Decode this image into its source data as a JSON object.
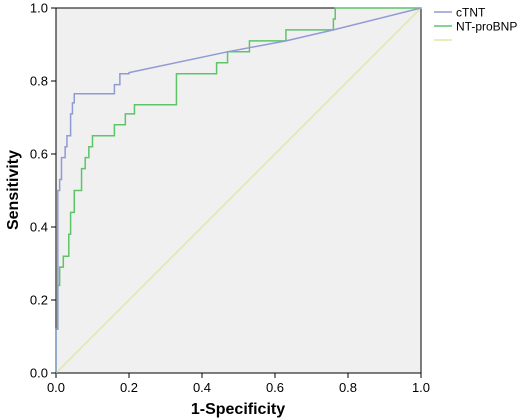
{
  "chart_data": {
    "type": "line",
    "title": "",
    "xlabel": "1-Specificity",
    "ylabel": "Sensitivity",
    "xlim": [
      0.0,
      1.0
    ],
    "ylim": [
      0.0,
      1.0
    ],
    "x_ticks": [
      "0.0",
      "0.2",
      "0.4",
      "0.6",
      "0.8",
      "1.0"
    ],
    "y_ticks": [
      "0.0",
      "0.2",
      "0.4",
      "0.6",
      "0.8",
      "1.0"
    ],
    "grid": false,
    "legend_position": "right",
    "background_color": "#f0f0f0",
    "series": [
      {
        "name": "cTNT",
        "color": "#8f9bd3",
        "points": [
          [
            0.0,
            0.0
          ],
          [
            0.0,
            0.12
          ],
          [
            0.005,
            0.12
          ],
          [
            0.005,
            0.5
          ],
          [
            0.01,
            0.5
          ],
          [
            0.01,
            0.53
          ],
          [
            0.015,
            0.53
          ],
          [
            0.015,
            0.59
          ],
          [
            0.025,
            0.59
          ],
          [
            0.025,
            0.62
          ],
          [
            0.03,
            0.62
          ],
          [
            0.03,
            0.65
          ],
          [
            0.04,
            0.65
          ],
          [
            0.04,
            0.71
          ],
          [
            0.045,
            0.71
          ],
          [
            0.045,
            0.74
          ],
          [
            0.05,
            0.74
          ],
          [
            0.05,
            0.765
          ],
          [
            0.16,
            0.765
          ],
          [
            0.16,
            0.79
          ],
          [
            0.175,
            0.79
          ],
          [
            0.175,
            0.82
          ],
          [
            0.2,
            0.82
          ],
          [
            0.2,
            0.823
          ],
          [
            0.47,
            0.88
          ],
          [
            0.63,
            0.91
          ],
          [
            0.76,
            0.94
          ],
          [
            1.0,
            1.0
          ]
        ]
      },
      {
        "name": "NT-proBNP",
        "color": "#5ec46a",
        "points": [
          [
            0.0,
            0.0
          ],
          [
            0.0,
            0.12
          ],
          [
            0.005,
            0.12
          ],
          [
            0.005,
            0.24
          ],
          [
            0.01,
            0.24
          ],
          [
            0.01,
            0.29
          ],
          [
            0.02,
            0.29
          ],
          [
            0.02,
            0.32
          ],
          [
            0.035,
            0.32
          ],
          [
            0.035,
            0.38
          ],
          [
            0.04,
            0.38
          ],
          [
            0.04,
            0.44
          ],
          [
            0.05,
            0.44
          ],
          [
            0.05,
            0.5
          ],
          [
            0.07,
            0.5
          ],
          [
            0.07,
            0.56
          ],
          [
            0.08,
            0.56
          ],
          [
            0.08,
            0.59
          ],
          [
            0.09,
            0.59
          ],
          [
            0.09,
            0.62
          ],
          [
            0.1,
            0.62
          ],
          [
            0.1,
            0.65
          ],
          [
            0.16,
            0.65
          ],
          [
            0.16,
            0.68
          ],
          [
            0.19,
            0.68
          ],
          [
            0.19,
            0.71
          ],
          [
            0.215,
            0.71
          ],
          [
            0.215,
            0.735
          ],
          [
            0.33,
            0.735
          ],
          [
            0.33,
            0.82
          ],
          [
            0.44,
            0.82
          ],
          [
            0.44,
            0.85
          ],
          [
            0.47,
            0.85
          ],
          [
            0.47,
            0.88
          ],
          [
            0.53,
            0.88
          ],
          [
            0.53,
            0.91
          ],
          [
            0.63,
            0.91
          ],
          [
            0.63,
            0.94
          ],
          [
            0.76,
            0.94
          ],
          [
            0.76,
            0.97
          ],
          [
            0.765,
            0.97
          ],
          [
            0.765,
            1.0
          ],
          [
            1.0,
            1.0
          ]
        ]
      },
      {
        "name": "",
        "color": "#e2e6a8",
        "points": [
          [
            0.0,
            0.0
          ],
          [
            1.0,
            1.0
          ]
        ]
      }
    ]
  }
}
